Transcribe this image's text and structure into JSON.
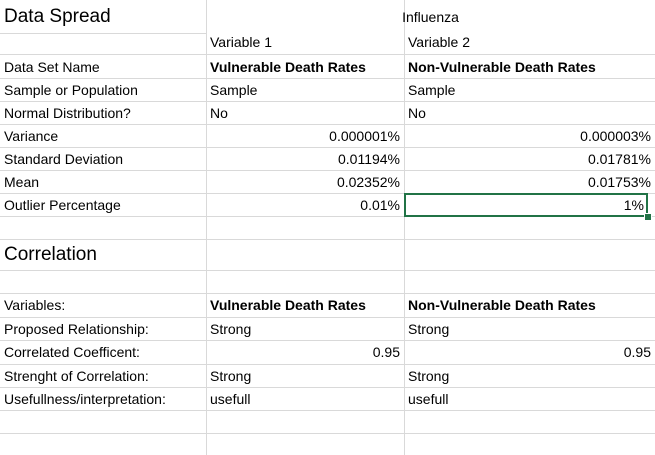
{
  "data_spread": {
    "title": "Data Spread",
    "group_header": "Influenza",
    "var1_header": "Variable 1",
    "var2_header": "Variable 2",
    "rows": [
      {
        "label": "Data Set Name",
        "v1": "Vulnerable Death Rates",
        "v2": "Non-Vulnerable Death Rates"
      },
      {
        "label": "Sample or Population",
        "v1": "Sample",
        "v2": "Sample"
      },
      {
        "label": "Normal Distribution?",
        "v1": "No",
        "v2": "No"
      },
      {
        "label": "Variance",
        "v1": "0.000001%",
        "v2": "0.000003%"
      },
      {
        "label": "Standard Deviation",
        "v1": "0.01194%",
        "v2": "0.01781%"
      },
      {
        "label": "Mean",
        "v1": "0.02352%",
        "v2": "0.01753%"
      },
      {
        "label": "Outlier Percentage",
        "v1": "0.01%",
        "v2": "1%"
      }
    ]
  },
  "correlation": {
    "title": "Correlation",
    "rows": [
      {
        "label": "Variables:",
        "v1": "Vulnerable Death Rates",
        "v2": "Non-Vulnerable Death Rates"
      },
      {
        "label": "Proposed Relationship:",
        "v1": "Strong",
        "v2": "Strong"
      },
      {
        "label": "Correlated Coefficent:",
        "v1": "0.95",
        "v2": "0.95"
      },
      {
        "label": "Strenght of Correlation:",
        "v1": "Strong",
        "v2": "Strong"
      },
      {
        "label": "Usefullness/interpretation:",
        "v1": "usefull",
        "v2": "usefull"
      }
    ]
  },
  "colors": {
    "gridline": "#d9d9d9",
    "selection": "#217346"
  }
}
